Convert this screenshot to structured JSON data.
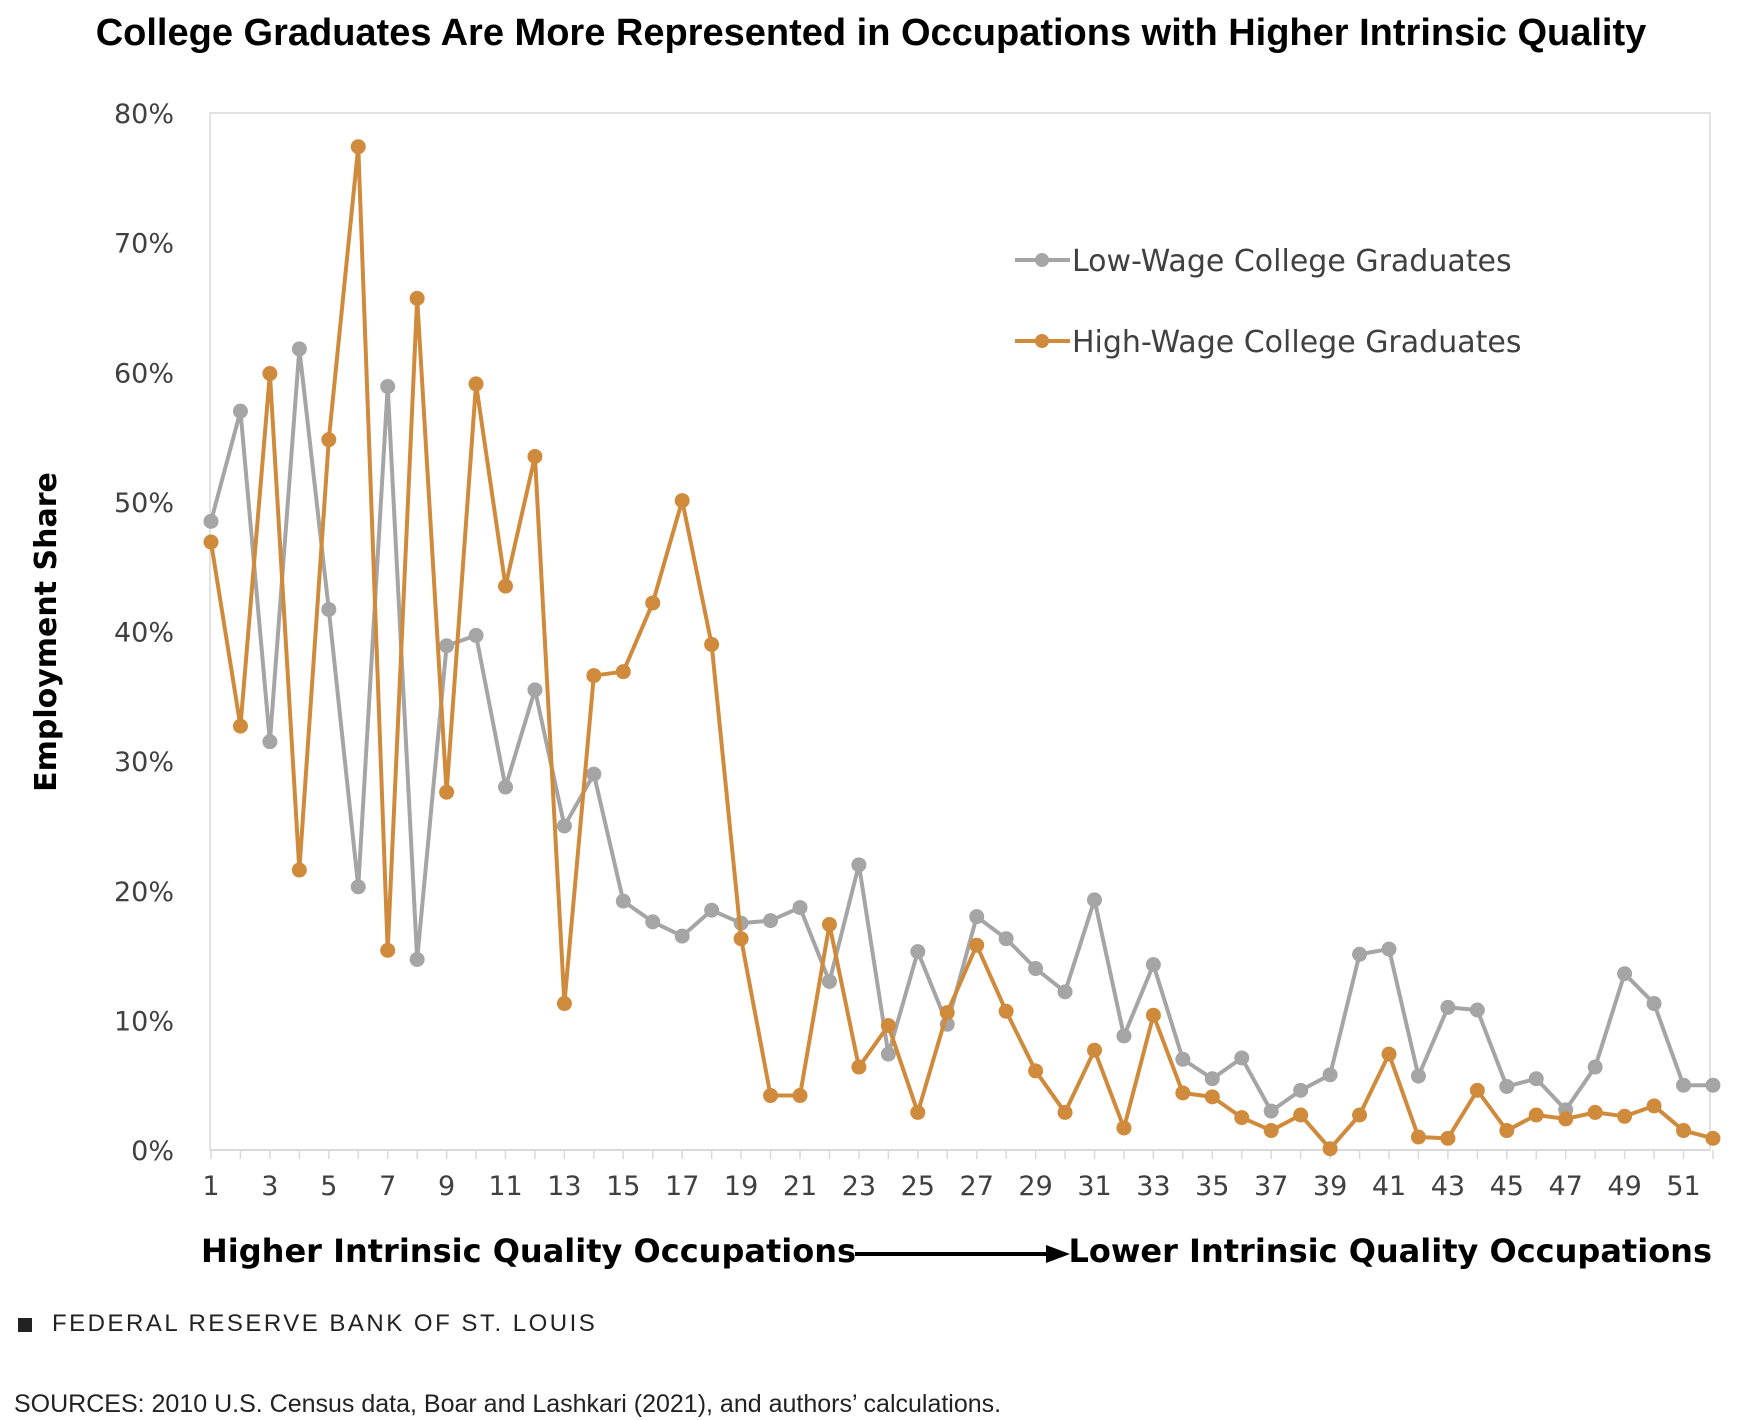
{
  "chart_data": {
    "type": "line",
    "title": "College Graduates Are More Represented in Occupations with Higher Intrinsic Quality",
    "ylabel": "Employment Share",
    "ylim": [
      0,
      80
    ],
    "y_ticks": [
      "0%",
      "10%",
      "20%",
      "30%",
      "40%",
      "50%",
      "60%",
      "70%",
      "80%"
    ],
    "x": [
      1,
      2,
      3,
      4,
      5,
      6,
      7,
      8,
      9,
      10,
      11,
      12,
      13,
      14,
      15,
      16,
      17,
      18,
      19,
      20,
      21,
      22,
      23,
      24,
      25,
      26,
      27,
      28,
      29,
      30,
      31,
      32,
      33,
      34,
      35,
      36,
      37,
      38,
      39,
      40,
      41,
      42,
      43,
      44,
      45,
      46,
      47,
      48,
      49,
      50,
      51,
      52
    ],
    "x_tick_labels": [
      "1",
      "3",
      "5",
      "7",
      "9",
      "11",
      "13",
      "15",
      "17",
      "19",
      "21",
      "23",
      "25",
      "27",
      "29",
      "31",
      "33",
      "35",
      "37",
      "39",
      "41",
      "43",
      "45",
      "47",
      "49",
      "51"
    ],
    "x_axis_left_label": "Higher Intrinsic Quality Occupations",
    "x_axis_right_label": "Lower Intrinsic Quality Occupations",
    "grid": false,
    "legend_position": "top-right",
    "series": [
      {
        "name": "Low-Wage College Graduates",
        "color": "#a5a5a5",
        "values": [
          48.5,
          57.0,
          31.5,
          61.8,
          41.7,
          20.3,
          58.9,
          14.7,
          38.9,
          39.7,
          28.0,
          35.5,
          25.0,
          29.0,
          19.2,
          17.6,
          16.5,
          18.5,
          17.5,
          17.7,
          18.7,
          13.0,
          22.0,
          7.4,
          15.3,
          9.7,
          18.0,
          16.3,
          14.0,
          12.2,
          19.3,
          8.8,
          14.3,
          7.0,
          5.5,
          7.1,
          3.0,
          4.6,
          5.8,
          15.1,
          15.5,
          5.7,
          11.0,
          10.8,
          4.9,
          5.5,
          3.1,
          6.4,
          13.6,
          11.3,
          5.0,
          5.0
        ]
      },
      {
        "name": "High-Wage College Graduates",
        "color": "#d08a3c",
        "values": [
          46.9,
          32.7,
          59.9,
          21.6,
          54.8,
          77.4,
          15.4,
          65.7,
          27.6,
          59.1,
          43.5,
          53.5,
          11.3,
          36.6,
          36.9,
          42.2,
          50.1,
          39.0,
          16.3,
          4.2,
          4.2,
          17.4,
          6.4,
          9.6,
          2.9,
          10.6,
          15.8,
          10.7,
          6.1,
          2.9,
          7.7,
          1.7,
          10.4,
          4.4,
          4.1,
          2.5,
          1.5,
          2.7,
          0.1,
          2.7,
          7.4,
          1.0,
          0.9,
          4.6,
          1.5,
          2.7,
          2.4,
          2.9,
          2.6,
          3.4,
          1.5,
          0.9
        ]
      }
    ]
  },
  "footer": {
    "source_name": "FEDERAL RESERVE BANK OF ST. LOUIS",
    "sources_note": "SOURCES: 2010 U.S. Census data, Boar and Lashkari (2021), and authors’ calculations."
  }
}
